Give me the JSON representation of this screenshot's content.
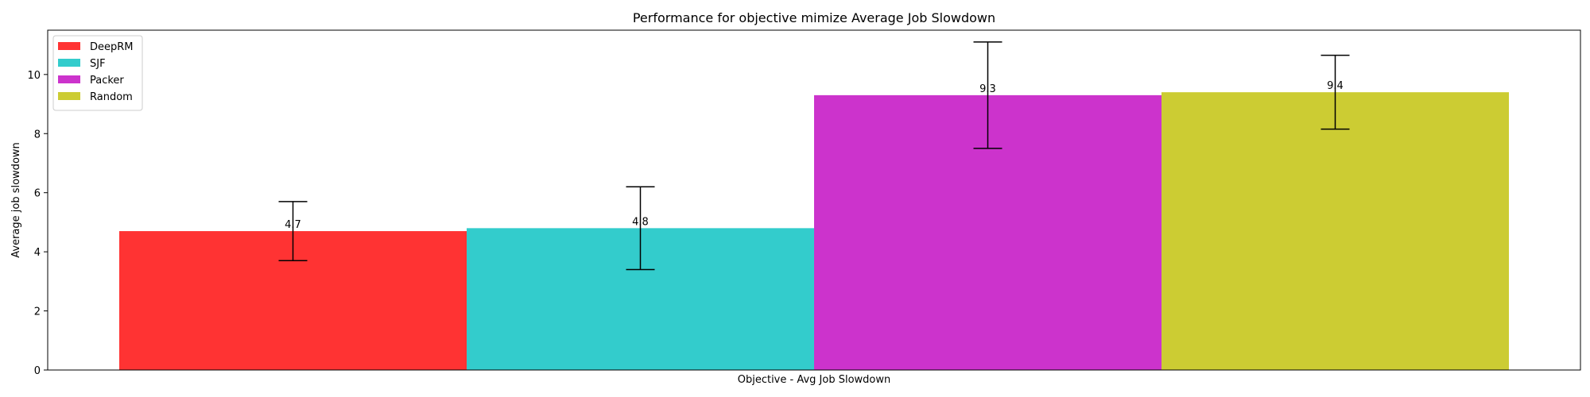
{
  "chart_data": {
    "type": "bar",
    "title": "Performance for objective mimize Average Job Slowdown",
    "xlabel": "Objective - Avg Job Slowdown",
    "ylabel": "Average job slowdown",
    "ylim": [
      0,
      11.5
    ],
    "yticks": [
      0,
      2,
      4,
      6,
      8,
      10
    ],
    "grid": false,
    "legend_position": "top-left",
    "series": [
      {
        "name": "DeepRM",
        "value": 4.7,
        "label": "4.7",
        "error": 1.0,
        "color": "#ff3333"
      },
      {
        "name": "SJF",
        "value": 4.8,
        "label": "4.8",
        "error": 1.4,
        "color": "#33cccc"
      },
      {
        "name": "Packer",
        "value": 9.3,
        "label": "9.3",
        "error": 1.8,
        "color": "#cc33cc"
      },
      {
        "name": "Random",
        "value": 9.4,
        "label": "9.4",
        "error": 1.25,
        "color": "#cccc33"
      }
    ]
  }
}
